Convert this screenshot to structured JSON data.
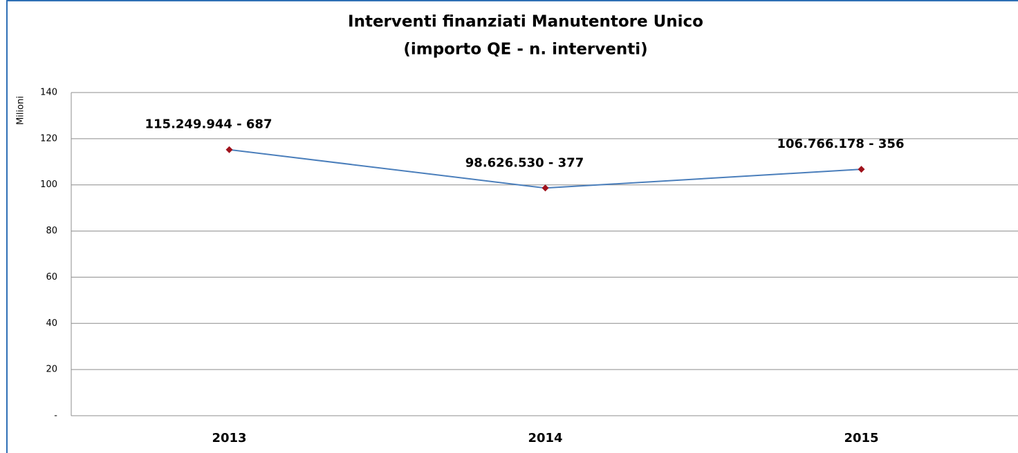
{
  "chart_data": {
    "type": "line",
    "title": "Interventi finanziati Manutentore Unico",
    "subtitle": "(importo QE - n. interventi)",
    "y_label": "Milioni",
    "categories": [
      "2013",
      "2014",
      "2015"
    ],
    "values": [
      115.249944,
      98.62653,
      106.766178
    ],
    "value_labels": [
      "115.249.944 - 687",
      "98.626.530 - 377",
      "106.766.178 - 356"
    ],
    "color": "#4a7ebb",
    "marker_color": "#a0121c",
    "ylim": [
      0,
      140
    ],
    "yticks": [
      {
        "value": 0,
        "label": "-"
      },
      20,
      40,
      60,
      80,
      100,
      120,
      140
    ],
    "grid": true
  }
}
